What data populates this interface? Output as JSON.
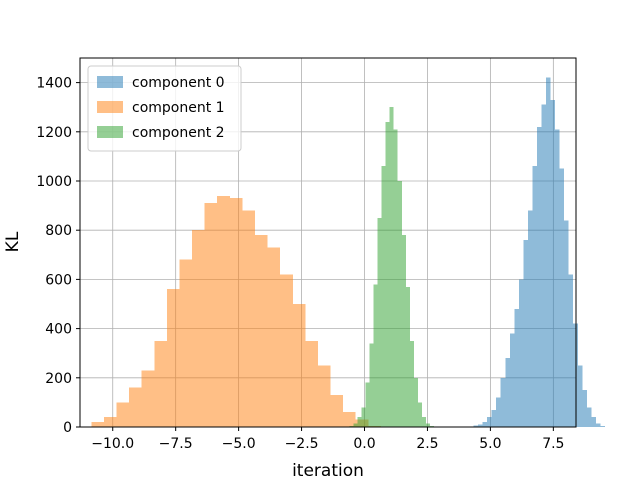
{
  "chart_data": {
    "type": "bar",
    "xlabel": "iteration",
    "ylabel": "KL",
    "xlim": [
      -11.3,
      8.4
    ],
    "ylim": [
      0,
      1500
    ],
    "grid": true,
    "legend_position": "top-left",
    "xticks": [
      -10.0,
      -7.5,
      -5.0,
      -2.5,
      0.0,
      2.5,
      5.0,
      7.5
    ],
    "xtick_labels": [
      "−10.0",
      "−7.5",
      "−5.0",
      "−2.5",
      "0.0",
      "2.5",
      "5.0",
      "7.5"
    ],
    "yticks": [
      0,
      200,
      400,
      600,
      800,
      1000,
      1200,
      1400
    ],
    "ytick_labels": [
      "0",
      "200",
      "400",
      "600",
      "800",
      "1000",
      "1200",
      "1400"
    ],
    "series": [
      {
        "name": "component 0",
        "color": "#1f77b4",
        "alpha": 0.5,
        "bin_start": 4.15,
        "bin_width": 0.18,
        "counts": [
          3,
          6,
          10,
          20,
          40,
          70,
          120,
          200,
          280,
          380,
          480,
          600,
          760,
          880,
          1060,
          1220,
          1310,
          1420,
          1330,
          1210,
          1050,
          840,
          620,
          420,
          250,
          150,
          80,
          40,
          15,
          5
        ]
      },
      {
        "name": "component 1",
        "color": "#ff7f0e",
        "alpha": 0.5,
        "bin_start": -10.85,
        "bin_width": 0.5,
        "counts": [
          20,
          40,
          100,
          160,
          230,
          350,
          560,
          680,
          800,
          910,
          940,
          930,
          880,
          780,
          730,
          620,
          500,
          350,
          250,
          130,
          60,
          30,
          5
        ]
      },
      {
        "name": "component 2",
        "color": "#2ca02c",
        "alpha": 0.5,
        "bin_start": -0.6,
        "bin_width": 0.16,
        "counts": [
          5,
          15,
          40,
          80,
          180,
          340,
          580,
          850,
          1060,
          1240,
          1300,
          1210,
          1000,
          780,
          570,
          350,
          200,
          100,
          40,
          15,
          4
        ]
      }
    ]
  }
}
